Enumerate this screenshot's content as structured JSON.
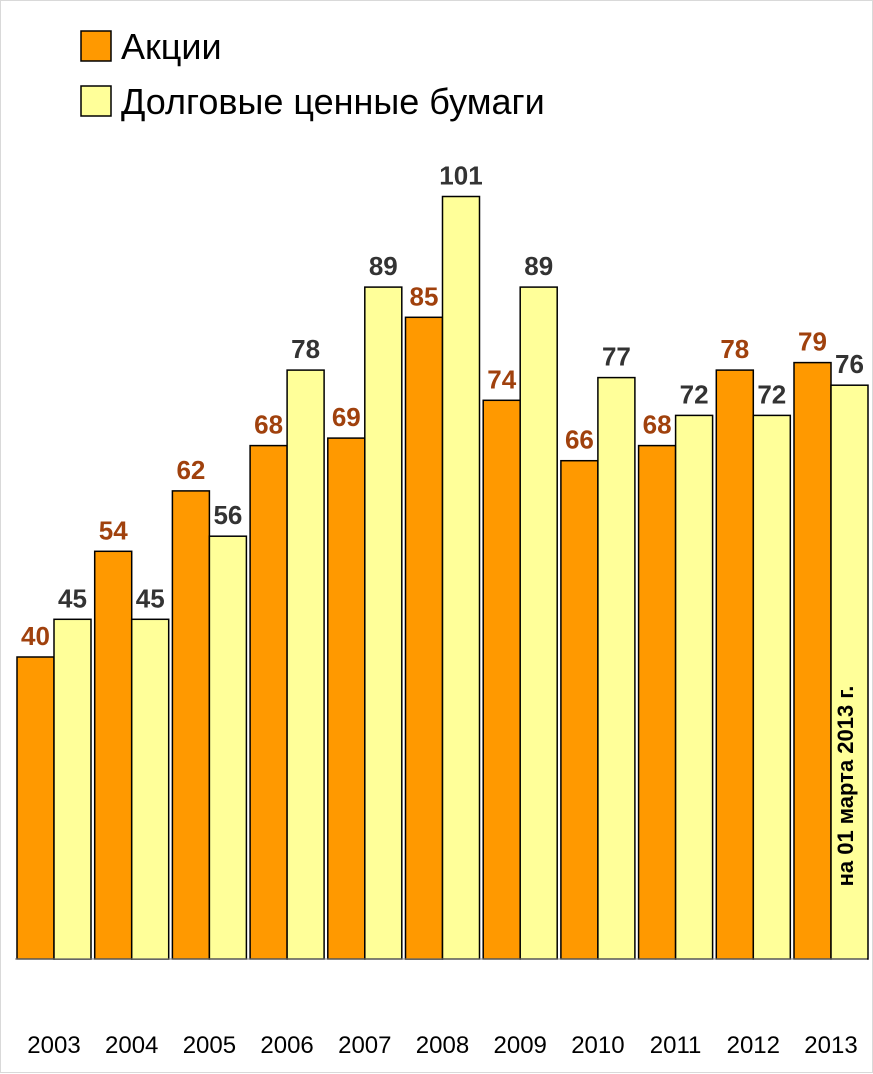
{
  "chart_data": {
    "type": "bar",
    "categories": [
      "2003",
      "2004",
      "2005",
      "2006",
      "2007",
      "2008",
      "2009",
      "2010",
      "2011",
      "2012",
      "2013"
    ],
    "series": [
      {
        "name": "Акции",
        "values": [
          40,
          54,
          62,
          68,
          69,
          85,
          74,
          66,
          68,
          78,
          79
        ],
        "color": "#ff9900",
        "label_color": "#a0410d"
      },
      {
        "name": "Долговые ценные бумаги",
        "values": [
          45,
          45,
          56,
          78,
          89,
          101,
          89,
          77,
          72,
          72,
          76
        ],
        "color": "#ffff99",
        "label_color": "#333333"
      }
    ],
    "ylim": [
      0,
      101
    ],
    "grid": false,
    "legend_position": "top-left",
    "annotation": "на 01 марта 2013 г."
  }
}
